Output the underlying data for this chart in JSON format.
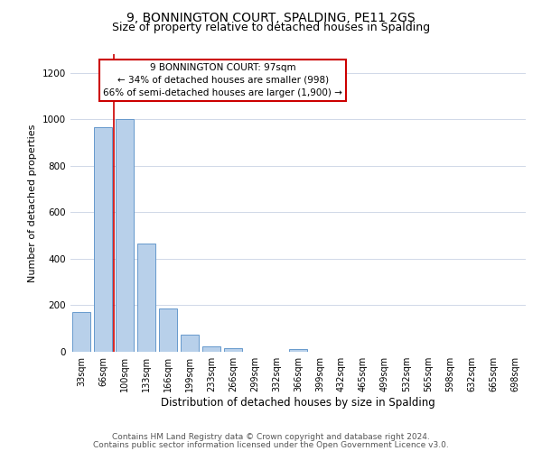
{
  "title": "9, BONNINGTON COURT, SPALDING, PE11 2GS",
  "subtitle": "Size of property relative to detached houses in Spalding",
  "xlabel": "Distribution of detached houses by size in Spalding",
  "ylabel": "Number of detached properties",
  "bar_labels": [
    "33sqm",
    "66sqm",
    "100sqm",
    "133sqm",
    "166sqm",
    "199sqm",
    "233sqm",
    "266sqm",
    "299sqm",
    "332sqm",
    "366sqm",
    "399sqm",
    "432sqm",
    "465sqm",
    "499sqm",
    "532sqm",
    "565sqm",
    "598sqm",
    "632sqm",
    "665sqm",
    "698sqm"
  ],
  "bar_heights": [
    170,
    965,
    1000,
    465,
    185,
    75,
    25,
    15,
    0,
    0,
    10,
    0,
    0,
    0,
    0,
    0,
    0,
    0,
    0,
    0,
    0
  ],
  "bar_color": "#B8D0EA",
  "bar_edge_color": "#6699CC",
  "ylim_max": 1280,
  "yticks": [
    0,
    200,
    400,
    600,
    800,
    1000,
    1200
  ],
  "red_line_color": "#CC0000",
  "red_line_x": 1.5,
  "annotation_line1": "9 BONNINGTON COURT: 97sqm",
  "annotation_line2": "← 34% of detached houses are smaller (998)",
  "annotation_line3": "66% of semi-detached houses are larger (1,900) →",
  "annotation_box_color": "#ffffff",
  "annotation_box_edge": "#CC0000",
  "footer_line1": "Contains HM Land Registry data © Crown copyright and database right 2024.",
  "footer_line2": "Contains public sector information licensed under the Open Government Licence v3.0.",
  "bg_color": "#ffffff",
  "grid_color": "#d0d8e8",
  "title_fontsize": 10,
  "subtitle_fontsize": 9,
  "ylabel_fontsize": 8,
  "xlabel_fontsize": 8.5,
  "tick_fontsize": 7,
  "footer_fontsize": 6.5,
  "ann_fontsize": 7.5
}
